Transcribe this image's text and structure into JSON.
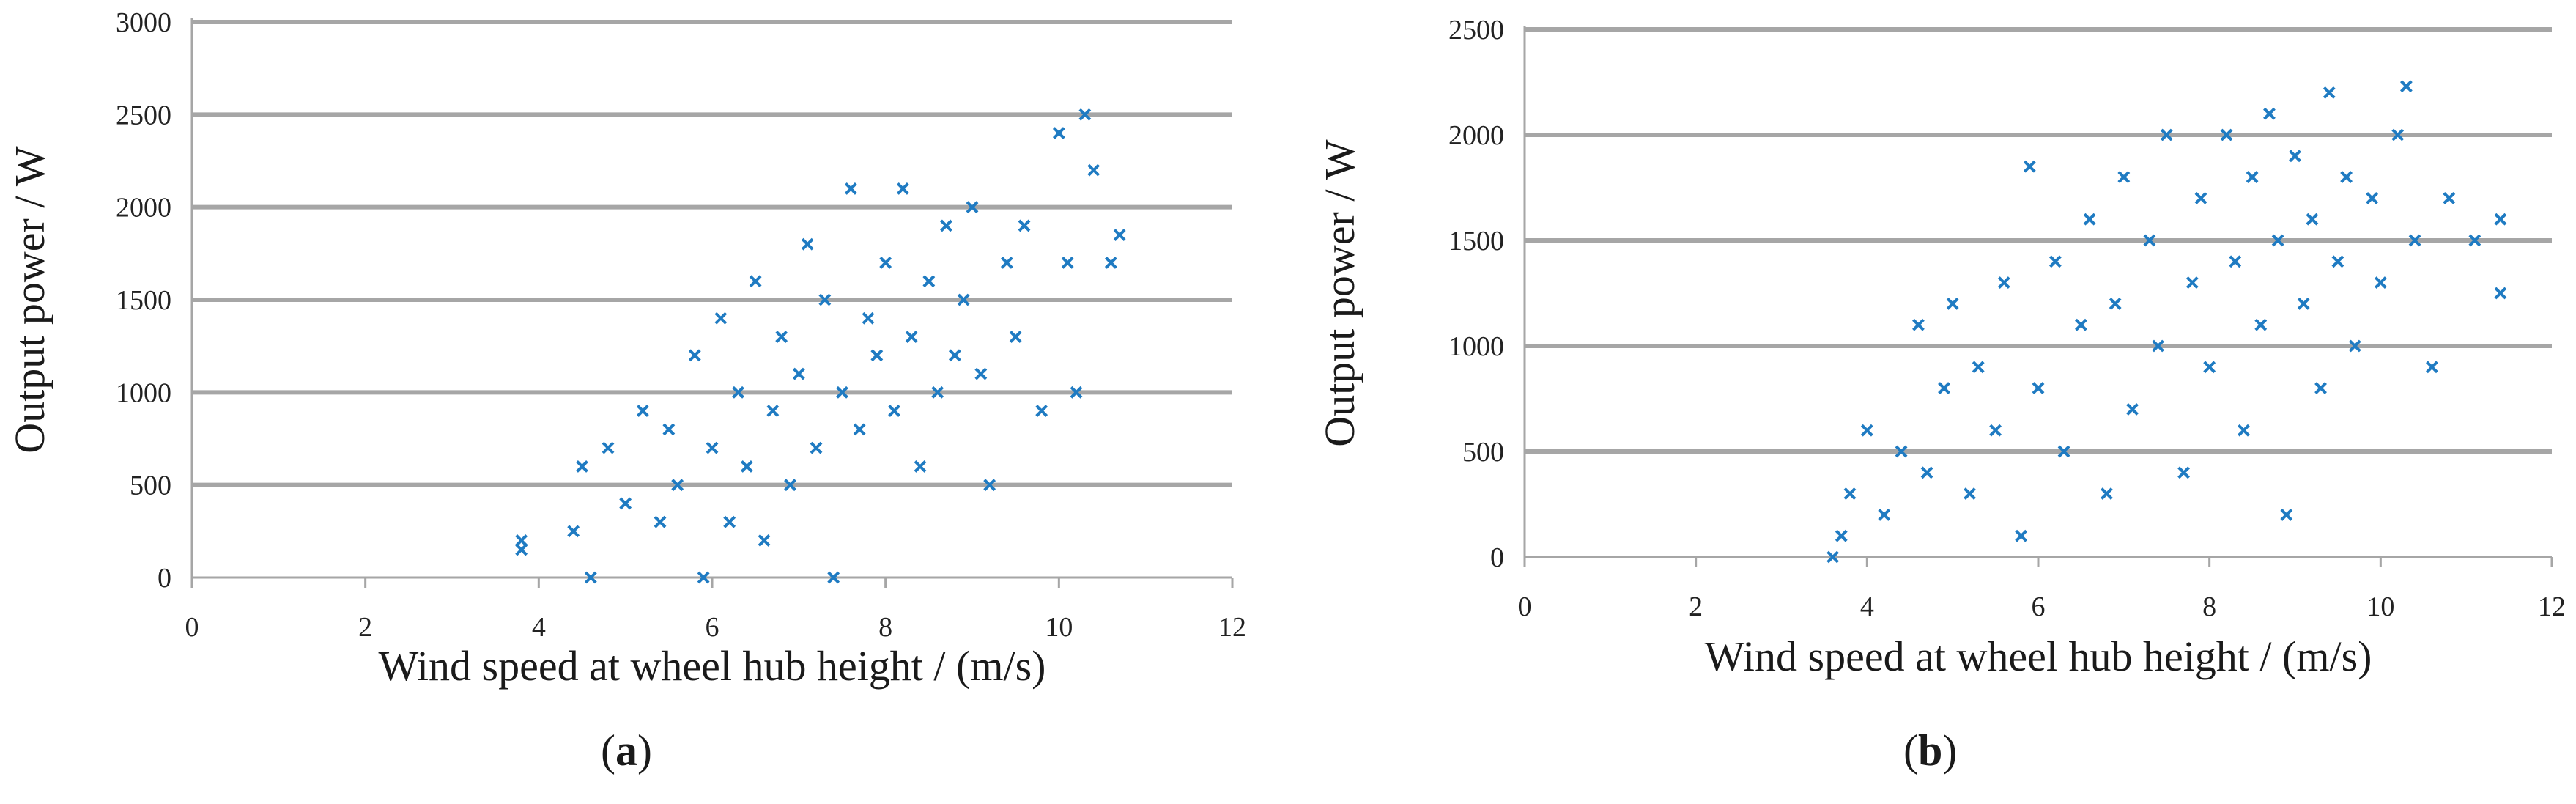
{
  "colors": {
    "marker": "#1f7bc2",
    "grid": "#a6a6a6",
    "text": "#1a1a1a"
  },
  "chart_data": [
    {
      "type": "scatter",
      "caption_letter": "a",
      "xlabel": "Wind speed at wheel hub height / (m/s)",
      "ylabel": "Output power / W",
      "xlim": [
        0,
        12
      ],
      "ylim": [
        0,
        3000
      ],
      "xticks": [
        "0",
        "2",
        "4",
        "6",
        "8",
        "10",
        "12"
      ],
      "yticks": [
        "0",
        "500",
        "1000",
        "1500",
        "2000",
        "2500",
        "3000"
      ],
      "grid": "horizontal",
      "marker": "x",
      "points": [
        [
          3.8,
          150
        ],
        [
          3.8,
          200
        ],
        [
          4.4,
          250
        ],
        [
          4.5,
          600
        ],
        [
          4.6,
          0
        ],
        [
          4.8,
          700
        ],
        [
          5.0,
          400
        ],
        [
          5.2,
          900
        ],
        [
          5.4,
          300
        ],
        [
          5.5,
          800
        ],
        [
          5.6,
          500
        ],
        [
          5.8,
          1200
        ],
        [
          5.9,
          0
        ],
        [
          6.0,
          700
        ],
        [
          6.1,
          1400
        ],
        [
          6.2,
          300
        ],
        [
          6.3,
          1000
        ],
        [
          6.4,
          600
        ],
        [
          6.5,
          1600
        ],
        [
          6.6,
          200
        ],
        [
          6.7,
          900
        ],
        [
          6.8,
          1300
        ],
        [
          6.9,
          500
        ],
        [
          7.0,
          1100
        ],
        [
          7.1,
          1800
        ],
        [
          7.2,
          700
        ],
        [
          7.3,
          1500
        ],
        [
          7.4,
          0
        ],
        [
          7.5,
          1000
        ],
        [
          7.6,
          2100
        ],
        [
          7.7,
          800
        ],
        [
          7.8,
          1400
        ],
        [
          7.9,
          1200
        ],
        [
          8.0,
          1700
        ],
        [
          8.1,
          900
        ],
        [
          8.2,
          2100
        ],
        [
          8.3,
          1300
        ],
        [
          8.4,
          600
        ],
        [
          8.5,
          1600
        ],
        [
          8.6,
          1000
        ],
        [
          8.7,
          1900
        ],
        [
          8.8,
          1200
        ],
        [
          8.9,
          1500
        ],
        [
          9.0,
          2000
        ],
        [
          9.1,
          1100
        ],
        [
          9.2,
          500
        ],
        [
          9.4,
          1700
        ],
        [
          9.5,
          1300
        ],
        [
          9.6,
          1900
        ],
        [
          9.8,
          900
        ],
        [
          10.0,
          2400
        ],
        [
          10.1,
          1700
        ],
        [
          10.2,
          1000
        ],
        [
          10.3,
          2500
        ],
        [
          10.4,
          2200
        ],
        [
          10.6,
          1700
        ],
        [
          10.7,
          1850
        ]
      ]
    },
    {
      "type": "scatter",
      "caption_letter": "b",
      "xlabel": "Wind speed at wheel hub height / (m/s)",
      "ylabel": "Output power / W",
      "xlim": [
        0,
        12
      ],
      "ylim": [
        0,
        2500
      ],
      "xticks": [
        "0",
        "2",
        "4",
        "6",
        "8",
        "10",
        "12"
      ],
      "yticks": [
        "0",
        "500",
        "1000",
        "1500",
        "2000",
        "2500"
      ],
      "grid": "horizontal",
      "marker": "x",
      "points": [
        [
          3.6,
          0
        ],
        [
          3.7,
          100
        ],
        [
          3.8,
          300
        ],
        [
          4.0,
          600
        ],
        [
          4.2,
          200
        ],
        [
          4.4,
          500
        ],
        [
          4.6,
          1100
        ],
        [
          4.7,
          400
        ],
        [
          4.9,
          800
        ],
        [
          5.0,
          1200
        ],
        [
          5.2,
          300
        ],
        [
          5.3,
          900
        ],
        [
          5.5,
          600
        ],
        [
          5.6,
          1300
        ],
        [
          5.8,
          100
        ],
        [
          5.9,
          1850
        ],
        [
          6.0,
          800
        ],
        [
          6.2,
          1400
        ],
        [
          6.3,
          500
        ],
        [
          6.5,
          1100
        ],
        [
          6.6,
          1600
        ],
        [
          6.8,
          300
        ],
        [
          6.9,
          1200
        ],
        [
          7.0,
          1800
        ],
        [
          7.1,
          700
        ],
        [
          7.3,
          1500
        ],
        [
          7.4,
          1000
        ],
        [
          7.5,
          2000
        ],
        [
          7.7,
          400
        ],
        [
          7.8,
          1300
        ],
        [
          7.9,
          1700
        ],
        [
          8.0,
          900
        ],
        [
          8.2,
          2000
        ],
        [
          8.3,
          1400
        ],
        [
          8.4,
          600
        ],
        [
          8.5,
          1800
        ],
        [
          8.6,
          1100
        ],
        [
          8.7,
          2100
        ],
        [
          8.8,
          1500
        ],
        [
          8.9,
          200
        ],
        [
          9.0,
          1900
        ],
        [
          9.1,
          1200
        ],
        [
          9.2,
          1600
        ],
        [
          9.3,
          800
        ],
        [
          9.4,
          2200
        ],
        [
          9.5,
          1400
        ],
        [
          9.6,
          1800
        ],
        [
          9.7,
          1000
        ],
        [
          9.9,
          1700
        ],
        [
          10.0,
          1300
        ],
        [
          10.2,
          2000
        ],
        [
          10.3,
          2230
        ],
        [
          10.4,
          1500
        ],
        [
          10.6,
          900
        ],
        [
          10.8,
          1700
        ],
        [
          11.1,
          1500
        ],
        [
          11.4,
          1250
        ],
        [
          11.4,
          1600
        ]
      ]
    }
  ]
}
